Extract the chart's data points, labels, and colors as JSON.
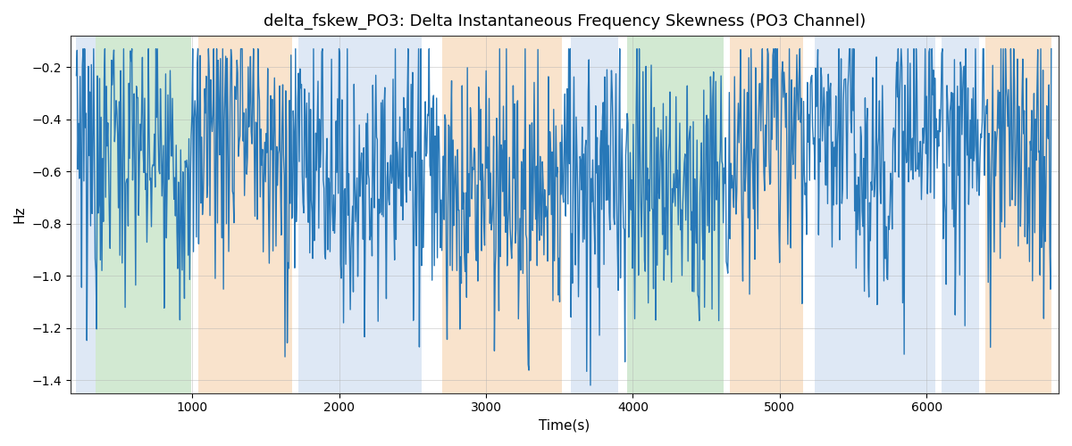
{
  "title": "delta_fskew_PO3: Delta Instantaneous Frequency Skewness (PO3 Channel)",
  "xlabel": "Time(s)",
  "ylabel": "Hz",
  "ylim": [
    -1.45,
    -0.08
  ],
  "yticks": [
    -1.4,
    -1.2,
    -1.0,
    -0.8,
    -0.6,
    -0.4,
    -0.2
  ],
  "line_color": "#2878b8",
  "line_width": 1.0,
  "bg_color": "#ffffff",
  "grid_color": "#b0b0b0",
  "bands": [
    {
      "xmin": 210,
      "xmax": 340,
      "color": "#aec6e8",
      "alpha": 0.4
    },
    {
      "xmin": 340,
      "xmax": 990,
      "color": "#90c990",
      "alpha": 0.4
    },
    {
      "xmin": 1040,
      "xmax": 1680,
      "color": "#f5c99a",
      "alpha": 0.5
    },
    {
      "xmin": 1720,
      "xmax": 2560,
      "color": "#aec6e8",
      "alpha": 0.4
    },
    {
      "xmin": 2700,
      "xmax": 3520,
      "color": "#f5c99a",
      "alpha": 0.5
    },
    {
      "xmin": 3580,
      "xmax": 3900,
      "color": "#aec6e8",
      "alpha": 0.4
    },
    {
      "xmin": 3960,
      "xmax": 4620,
      "color": "#90c990",
      "alpha": 0.4
    },
    {
      "xmin": 4660,
      "xmax": 5160,
      "color": "#f5c99a",
      "alpha": 0.5
    },
    {
      "xmin": 5240,
      "xmax": 6060,
      "color": "#aec6e8",
      "alpha": 0.4
    },
    {
      "xmin": 6100,
      "xmax": 6360,
      "color": "#aec6e8",
      "alpha": 0.4
    },
    {
      "xmin": 6400,
      "xmax": 6850,
      "color": "#f5c99a",
      "alpha": 0.5
    }
  ],
  "xlim_min": 170,
  "xlim_max": 6900,
  "x_start": 210,
  "x_end": 6850,
  "num_points": 1300,
  "seed": 7
}
